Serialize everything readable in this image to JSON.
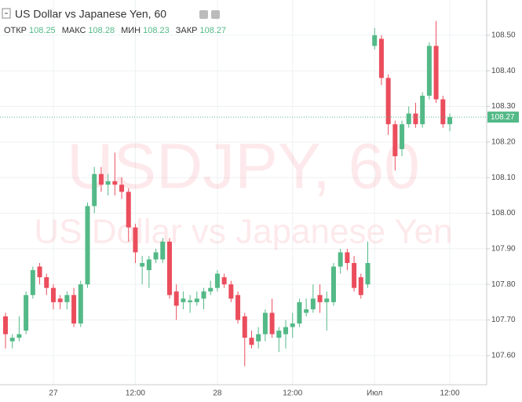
{
  "chart_data": {
    "type": "candlestick",
    "symbol": "USDJPY, 60",
    "watermark_subtitle": "US Dollar vs Japanese Yen",
    "title": "US Dollar vs Japanese Yen, 60",
    "header": {
      "open_label": "ОТКР",
      "open": "108.25",
      "high_label": "МАКС",
      "high": "108.28",
      "low_label": "МИН",
      "low": "108.23",
      "close_label": "ЗАКР",
      "close": "108.27"
    },
    "categories": [
      null,
      null,
      null,
      null,
      null,
      null,
      null,
      "27",
      null,
      null,
      null,
      null,
      null,
      null,
      null,
      null,
      null,
      null,
      null,
      "12:00",
      null,
      null,
      null,
      null,
      null,
      null,
      null,
      null,
      null,
      null,
      null,
      "28",
      null,
      null,
      null,
      null,
      null,
      null,
      null,
      null,
      null,
      null,
      "12:00",
      null,
      null,
      null,
      null,
      null,
      null,
      null,
      null,
      null,
      null,
      null,
      "Июл",
      null,
      null,
      null,
      null,
      null,
      null,
      null,
      null,
      null,
      null,
      "12:00"
    ],
    "open": [
      107.71,
      107.64,
      107.65,
      107.67,
      107.77,
      107.85,
      107.82,
      107.79,
      107.76,
      107.75,
      107.77,
      107.69,
      107.8,
      108.02,
      108.11,
      108.08,
      108.09,
      108.08,
      108.06,
      107.96,
      107.85,
      107.84,
      107.87,
      107.87,
      107.92,
      107.78,
      107.75,
      107.75,
      107.75,
      107.76,
      107.78,
      107.79,
      107.82,
      107.8,
      107.77,
      107.71,
      107.65,
      107.64,
      107.66,
      107.72,
      107.65,
      107.66,
      107.68,
      107.69,
      107.72,
      107.73,
      107.77,
      107.75,
      107.75,
      107.85,
      107.89,
      107.86,
      107.82,
      107.8,
      108.47,
      108.49,
      108.38,
      108.25,
      108.18,
      108.25,
      108.28,
      108.25,
      108.33,
      108.47,
      108.32,
      108.25
    ],
    "high": [
      107.72,
      107.66,
      107.71,
      107.78,
      107.85,
      107.86,
      107.83,
      107.8,
      107.77,
      107.78,
      107.79,
      107.81,
      108.03,
      108.13,
      108.13,
      108.11,
      108.17,
      108.1,
      108.07,
      107.97,
      107.88,
      107.88,
      107.9,
      107.93,
      107.93,
      107.8,
      107.78,
      107.77,
      107.78,
      107.79,
      107.81,
      107.84,
      107.83,
      107.81,
      107.78,
      107.72,
      107.67,
      107.68,
      107.73,
      107.76,
      107.68,
      107.7,
      107.72,
      107.76,
      107.76,
      107.8,
      107.8,
      107.78,
      107.86,
      107.9,
      107.9,
      107.88,
      107.83,
      107.92,
      108.52,
      108.5,
      108.39,
      108.26,
      108.26,
      108.3,
      108.31,
      108.34,
      108.48,
      108.54,
      108.33,
      108.28
    ],
    "low": [
      107.62,
      107.62,
      107.64,
      107.66,
      107.76,
      107.8,
      107.77,
      107.73,
      107.73,
      107.73,
      107.68,
      107.68,
      107.79,
      108.0,
      108.06,
      108.05,
      108.05,
      108.04,
      107.92,
      107.86,
      107.8,
      107.79,
      107.86,
      107.86,
      107.76,
      107.7,
      107.73,
      107.72,
      107.74,
      107.73,
      107.77,
      107.78,
      107.79,
      107.75,
      107.69,
      107.57,
      107.62,
      107.62,
      107.64,
      107.65,
      107.61,
      107.62,
      107.65,
      107.68,
      107.71,
      107.72,
      107.72,
      107.67,
      107.74,
      107.83,
      107.84,
      107.78,
      107.76,
      107.79,
      108.46,
      108.36,
      108.22,
      108.12,
      108.16,
      108.24,
      108.24,
      108.24,
      108.32,
      108.31,
      108.24,
      108.23
    ],
    "close": [
      107.66,
      107.65,
      107.66,
      107.77,
      107.84,
      107.82,
      107.79,
      107.75,
      107.75,
      107.77,
      107.69,
      107.8,
      108.02,
      108.11,
      108.08,
      108.09,
      108.08,
      108.06,
      107.96,
      107.89,
      107.86,
      107.87,
      107.89,
      107.92,
      107.77,
      107.74,
      107.76,
      107.755,
      107.76,
      107.78,
      107.79,
      107.83,
      107.8,
      107.76,
      107.7,
      107.65,
      107.63,
      107.66,
      107.72,
      107.66,
      107.67,
      107.68,
      107.69,
      107.75,
      107.73,
      107.76,
      107.75,
      107.76,
      107.85,
      107.89,
      107.86,
      107.79,
      107.77,
      107.86,
      108.5,
      108.38,
      108.25,
      108.16,
      108.25,
      108.28,
      108.25,
      108.33,
      108.47,
      108.32,
      108.25,
      108.27
    ],
    "up_color": "#53b987",
    "down_color": "#eb4d5c",
    "last_price": {
      "value": 108.27,
      "label": "108.27"
    },
    "ylim": [
      107.518,
      108.599
    ],
    "yticks": [
      {
        "value": 107.6,
        "label": "107.60"
      },
      {
        "value": 107.7,
        "label": "107.70"
      },
      {
        "value": 107.8,
        "label": "107.80"
      },
      {
        "value": 107.9,
        "label": "107.90"
      },
      {
        "value": 108.0,
        "label": "108.00"
      },
      {
        "value": 108.1,
        "label": "108.10"
      },
      {
        "value": 108.2,
        "label": "108.20"
      },
      {
        "value": 108.3,
        "label": "108.30"
      },
      {
        "value": 108.4,
        "label": "108.40"
      },
      {
        "value": 108.5,
        "label": "108.50"
      }
    ],
    "grid": true
  }
}
